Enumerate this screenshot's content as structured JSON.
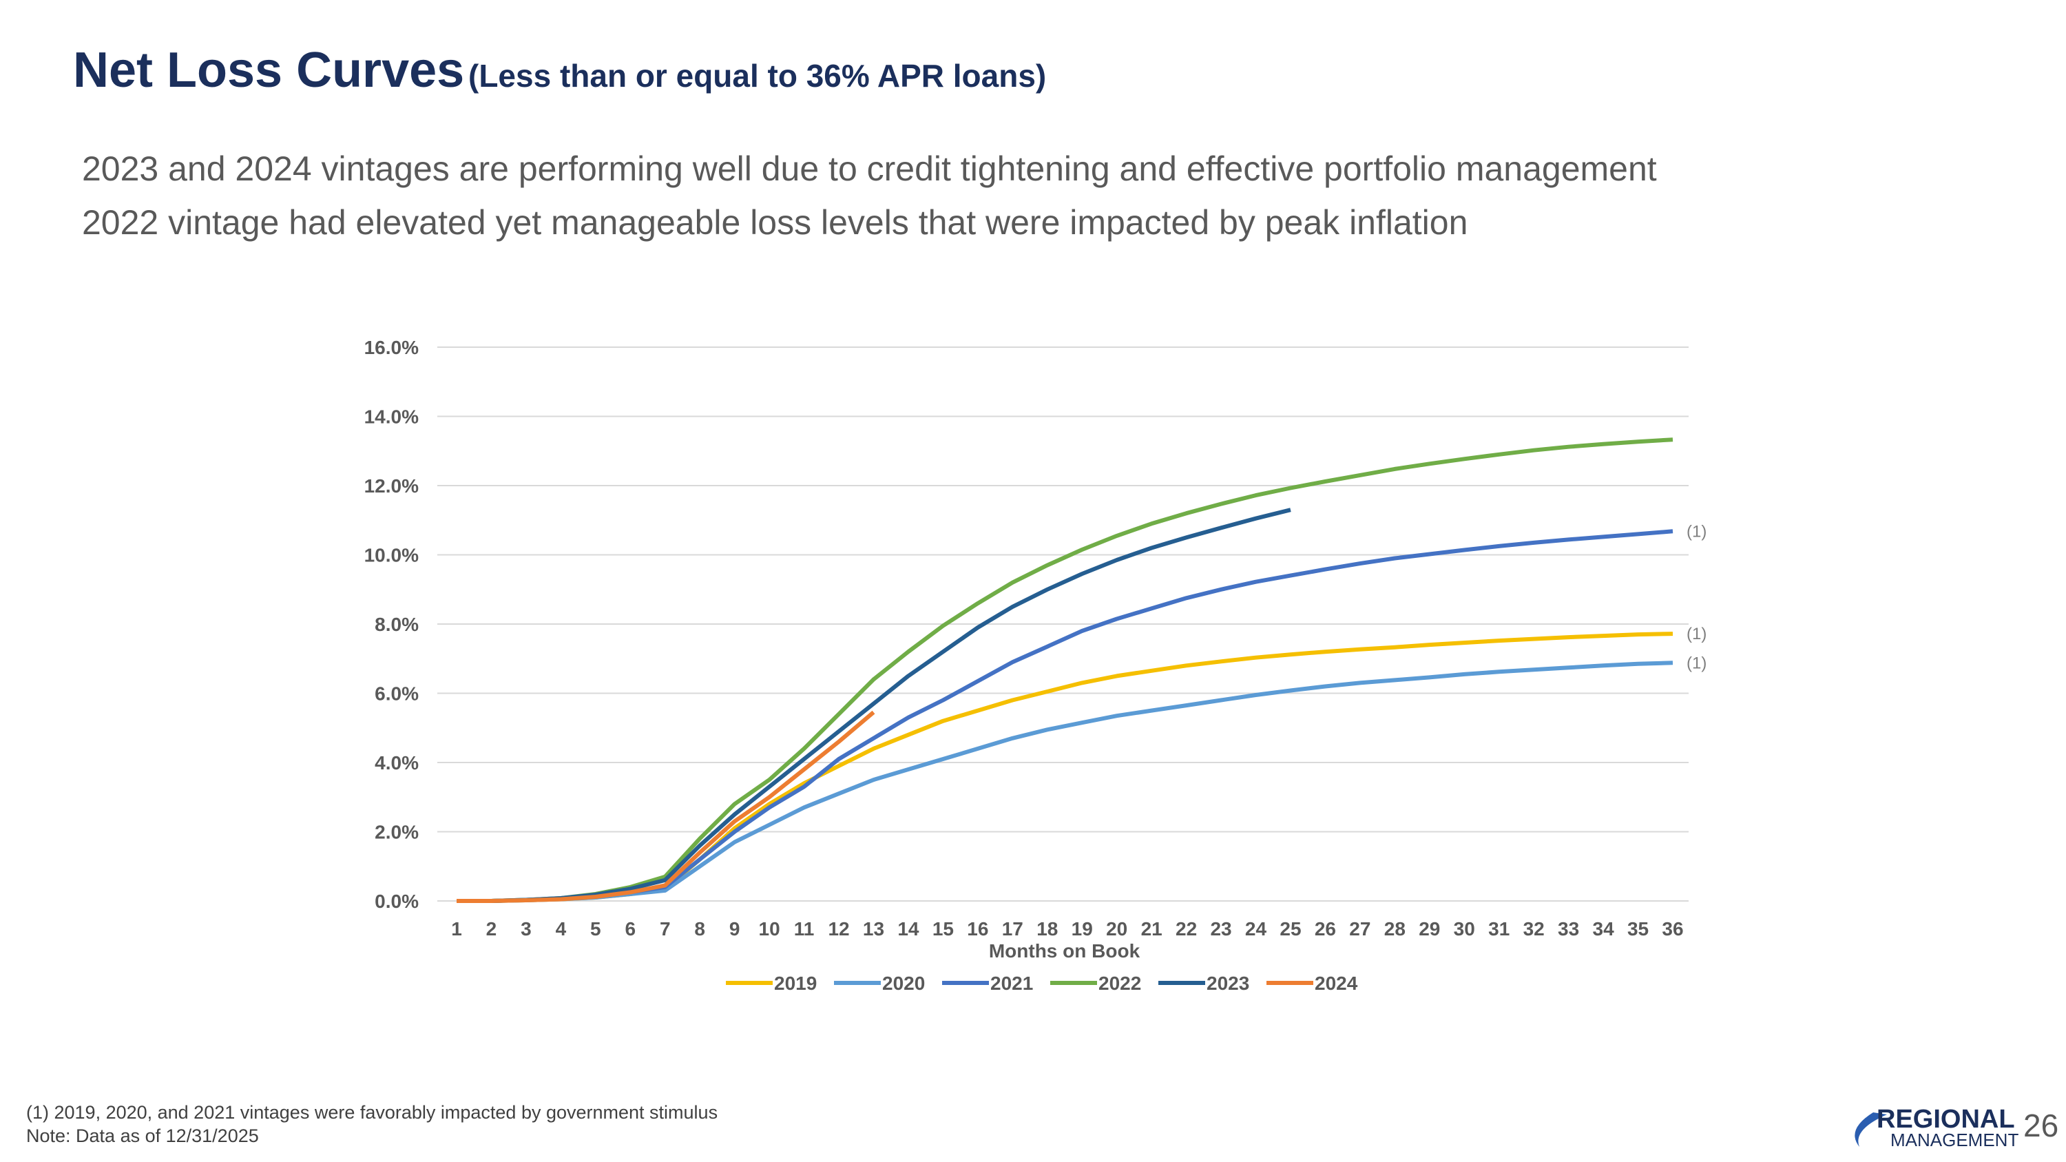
{
  "header": {
    "title": "Net Loss Curves",
    "subtitle": "(Less than or equal to 36% APR loans)",
    "bullets": [
      "2023 and 2024 vintages are performing well due to credit tightening and effective portfolio management",
      "2022 vintage had elevated yet manageable loss levels that were impacted by peak inflation"
    ]
  },
  "chart_data": {
    "type": "line",
    "x_label": "Months on Book",
    "categories": [
      1,
      2,
      3,
      4,
      5,
      6,
      7,
      8,
      9,
      10,
      11,
      12,
      13,
      14,
      15,
      16,
      17,
      18,
      19,
      20,
      21,
      22,
      23,
      24,
      25,
      26,
      27,
      28,
      29,
      30,
      31,
      32,
      33,
      34,
      35,
      36
    ],
    "ylim": [
      0,
      16
    ],
    "yticks": [
      {
        "value": 0,
        "label": "0.0%"
      },
      {
        "value": 2,
        "label": "2.0%"
      },
      {
        "value": 4,
        "label": "4.0%"
      },
      {
        "value": 6,
        "label": "6.0%"
      },
      {
        "value": 8,
        "label": "8.0%"
      },
      {
        "value": 10,
        "label": "10.0%"
      },
      {
        "value": 12,
        "label": "12.0%"
      },
      {
        "value": 14,
        "label": "14.0%"
      },
      {
        "value": 16,
        "label": "16.0%"
      }
    ],
    "grid": true,
    "legend": "bottom",
    "series": [
      {
        "name": "2019",
        "color": "#f5bf00",
        "annotation": "(1)",
        "values": [
          0,
          0,
          0.02,
          0.05,
          0.1,
          0.2,
          0.35,
          1.2,
          2.1,
          2.8,
          3.4,
          3.9,
          4.4,
          4.8,
          5.2,
          5.5,
          5.8,
          6.05,
          6.3,
          6.5,
          6.65,
          6.8,
          6.92,
          7.03,
          7.12,
          7.2,
          7.27,
          7.33,
          7.4,
          7.46,
          7.52,
          7.57,
          7.62,
          7.66,
          7.7,
          7.72
        ]
      },
      {
        "name": "2020",
        "color": "#5b9bd5",
        "annotation": "(1)",
        "values": [
          0,
          0,
          0.02,
          0.05,
          0.1,
          0.2,
          0.3,
          1.0,
          1.7,
          2.2,
          2.7,
          3.1,
          3.5,
          3.8,
          4.1,
          4.4,
          4.7,
          4.95,
          5.15,
          5.35,
          5.5,
          5.65,
          5.8,
          5.95,
          6.08,
          6.2,
          6.3,
          6.38,
          6.46,
          6.55,
          6.62,
          6.68,
          6.74,
          6.8,
          6.85,
          6.88
        ]
      },
      {
        "name": "2021",
        "color": "#4472c4",
        "annotation": "(1)",
        "values": [
          0,
          0,
          0.03,
          0.07,
          0.15,
          0.25,
          0.4,
          1.2,
          2.0,
          2.7,
          3.3,
          4.1,
          4.7,
          5.3,
          5.8,
          6.35,
          6.9,
          7.35,
          7.8,
          8.15,
          8.45,
          8.75,
          9.0,
          9.22,
          9.4,
          9.58,
          9.75,
          9.9,
          10.02,
          10.14,
          10.25,
          10.35,
          10.44,
          10.52,
          10.6,
          10.68
        ]
      },
      {
        "name": "2022",
        "color": "#70ad47",
        "values": [
          0,
          0,
          0.03,
          0.08,
          0.2,
          0.4,
          0.7,
          1.8,
          2.8,
          3.5,
          4.4,
          5.4,
          6.4,
          7.2,
          7.95,
          8.6,
          9.2,
          9.7,
          10.15,
          10.55,
          10.9,
          11.2,
          11.47,
          11.72,
          11.93,
          12.12,
          12.3,
          12.48,
          12.63,
          12.77,
          12.9,
          13.02,
          13.12,
          13.2,
          13.27,
          13.33
        ]
      },
      {
        "name": "2023",
        "color": "#255e91",
        "values": [
          0,
          0,
          0.03,
          0.08,
          0.18,
          0.35,
          0.6,
          1.6,
          2.5,
          3.3,
          4.1,
          4.9,
          5.7,
          6.5,
          7.2,
          7.9,
          8.5,
          9.0,
          9.45,
          9.85,
          10.2,
          10.5,
          10.78,
          11.05,
          11.3,
          null,
          null,
          null,
          null,
          null,
          null,
          null,
          null,
          null,
          null,
          null
        ]
      },
      {
        "name": "2024",
        "color": "#ed7d31",
        "values": [
          0,
          0,
          0.02,
          0.05,
          0.12,
          0.25,
          0.45,
          1.4,
          2.3,
          3.0,
          3.8,
          4.6,
          5.45,
          null,
          null,
          null,
          null,
          null,
          null,
          null,
          null,
          null,
          null,
          null,
          null,
          null,
          null,
          null,
          null,
          null,
          null,
          null,
          null,
          null,
          null,
          null
        ]
      }
    ]
  },
  "footer": {
    "notes": [
      "(1) 2019, 2020, and 2021 vintages were favorably impacted by government stimulus",
      "Note: Data as of 12/31/2025"
    ],
    "logo": [
      "REGIONAL",
      "MANAGEMENT"
    ],
    "page": "26"
  }
}
